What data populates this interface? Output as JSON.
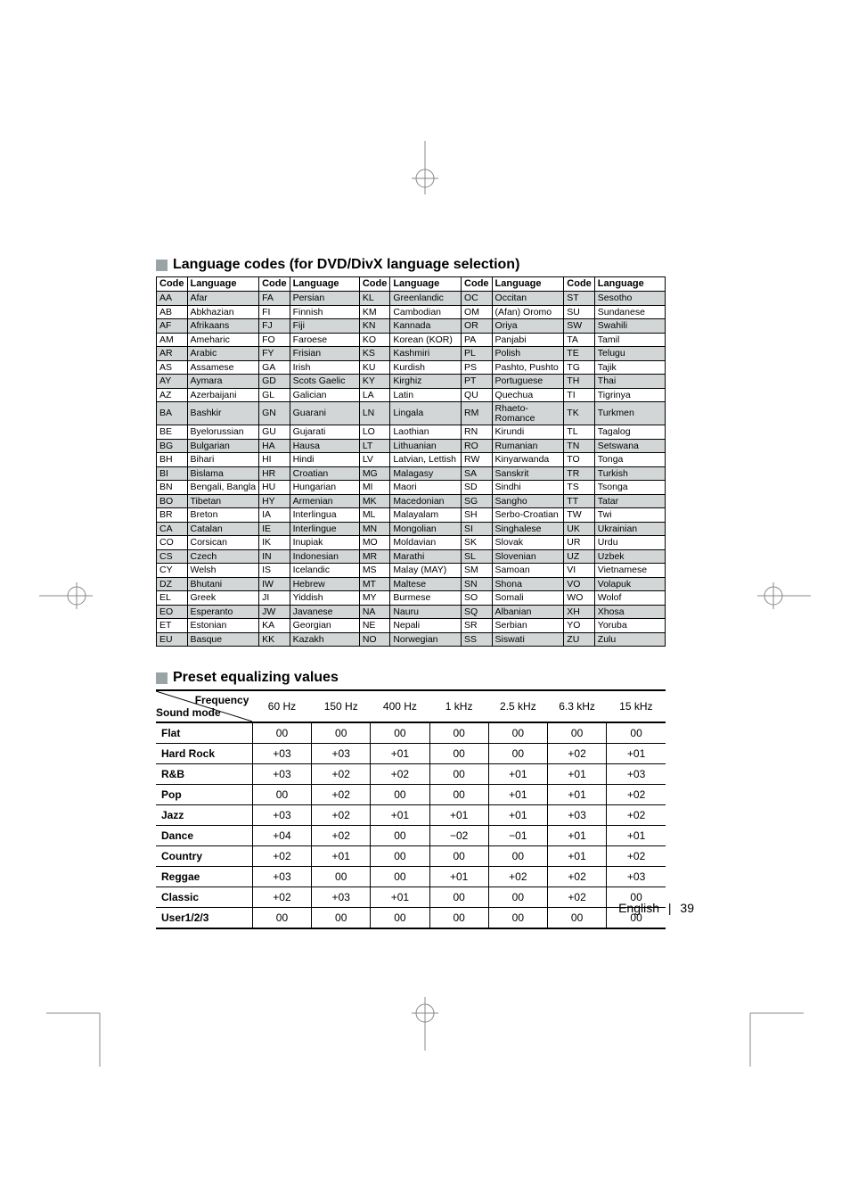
{
  "sections": {
    "lang_title": "Language codes (for DVD/DivX language selection)",
    "eq_title": "Preset equalizing values"
  },
  "lang_table": {
    "headers": [
      "Code",
      "Language"
    ],
    "columns": 5,
    "rows": [
      [
        [
          "AA",
          "Afar"
        ],
        [
          "FA",
          "Persian"
        ],
        [
          "KL",
          "Greenlandic"
        ],
        [
          "OC",
          "Occitan"
        ],
        [
          "ST",
          "Sesotho"
        ]
      ],
      [
        [
          "AB",
          "Abkhazian"
        ],
        [
          "FI",
          "Finnish"
        ],
        [
          "KM",
          "Cambodian"
        ],
        [
          "OM",
          "(Afan) Oromo"
        ],
        [
          "SU",
          "Sundanese"
        ]
      ],
      [
        [
          "AF",
          "Afrikaans"
        ],
        [
          "FJ",
          "Fiji"
        ],
        [
          "KN",
          "Kannada"
        ],
        [
          "OR",
          "Oriya"
        ],
        [
          "SW",
          "Swahili"
        ]
      ],
      [
        [
          "AM",
          "Ameharic"
        ],
        [
          "FO",
          "Faroese"
        ],
        [
          "KO",
          "Korean (KOR)"
        ],
        [
          "PA",
          "Panjabi"
        ],
        [
          "TA",
          "Tamil"
        ]
      ],
      [
        [
          "AR",
          "Arabic"
        ],
        [
          "FY",
          "Frisian"
        ],
        [
          "KS",
          "Kashmiri"
        ],
        [
          "PL",
          "Polish"
        ],
        [
          "TE",
          "Telugu"
        ]
      ],
      [
        [
          "AS",
          "Assamese"
        ],
        [
          "GA",
          "Irish"
        ],
        [
          "KU",
          "Kurdish"
        ],
        [
          "PS",
          "Pashto, Pushto"
        ],
        [
          "TG",
          "Tajik"
        ]
      ],
      [
        [
          "AY",
          "Aymara"
        ],
        [
          "GD",
          "Scots Gaelic"
        ],
        [
          "KY",
          "Kirghiz"
        ],
        [
          "PT",
          "Portuguese"
        ],
        [
          "TH",
          "Thai"
        ]
      ],
      [
        [
          "AZ",
          "Azerbaijani"
        ],
        [
          "GL",
          "Galician"
        ],
        [
          "LA",
          "Latin"
        ],
        [
          "QU",
          "Quechua"
        ],
        [
          "TI",
          "Tigrinya"
        ]
      ],
      [
        [
          "BA",
          "Bashkir"
        ],
        [
          "GN",
          "Guarani"
        ],
        [
          "LN",
          "Lingala"
        ],
        [
          "RM",
          "Rhaeto-Romance"
        ],
        [
          "TK",
          "Turkmen"
        ]
      ],
      [
        [
          "BE",
          "Byelorussian"
        ],
        [
          "GU",
          "Gujarati"
        ],
        [
          "LO",
          "Laothian"
        ],
        [
          "RN",
          "Kirundi"
        ],
        [
          "TL",
          "Tagalog"
        ]
      ],
      [
        [
          "BG",
          "Bulgarian"
        ],
        [
          "HA",
          "Hausa"
        ],
        [
          "LT",
          "Lithuanian"
        ],
        [
          "RO",
          "Rumanian"
        ],
        [
          "TN",
          "Setswana"
        ]
      ],
      [
        [
          "BH",
          "Bihari"
        ],
        [
          "HI",
          "Hindi"
        ],
        [
          "LV",
          "Latvian, Lettish"
        ],
        [
          "RW",
          "Kinyarwanda"
        ],
        [
          "TO",
          "Tonga"
        ]
      ],
      [
        [
          "BI",
          "Bislama"
        ],
        [
          "HR",
          "Croatian"
        ],
        [
          "MG",
          "Malagasy"
        ],
        [
          "SA",
          "Sanskrit"
        ],
        [
          "TR",
          "Turkish"
        ]
      ],
      [
        [
          "BN",
          "Bengali, Bangla"
        ],
        [
          "HU",
          "Hungarian"
        ],
        [
          "MI",
          "Maori"
        ],
        [
          "SD",
          "Sindhi"
        ],
        [
          "TS",
          "Tsonga"
        ]
      ],
      [
        [
          "BO",
          "Tibetan"
        ],
        [
          "HY",
          "Armenian"
        ],
        [
          "MK",
          "Macedonian"
        ],
        [
          "SG",
          "Sangho"
        ],
        [
          "TT",
          "Tatar"
        ]
      ],
      [
        [
          "BR",
          "Breton"
        ],
        [
          "IA",
          "Interlingua"
        ],
        [
          "ML",
          "Malayalam"
        ],
        [
          "SH",
          "Serbo-Croatian"
        ],
        [
          "TW",
          "Twi"
        ]
      ],
      [
        [
          "CA",
          "Catalan"
        ],
        [
          "IE",
          "Interlingue"
        ],
        [
          "MN",
          "Mongolian"
        ],
        [
          "SI",
          "Singhalese"
        ],
        [
          "UK",
          "Ukrainian"
        ]
      ],
      [
        [
          "CO",
          "Corsican"
        ],
        [
          "IK",
          "Inupiak"
        ],
        [
          "MO",
          "Moldavian"
        ],
        [
          "SK",
          "Slovak"
        ],
        [
          "UR",
          "Urdu"
        ]
      ],
      [
        [
          "CS",
          "Czech"
        ],
        [
          "IN",
          "Indonesian"
        ],
        [
          "MR",
          "Marathi"
        ],
        [
          "SL",
          "Slovenian"
        ],
        [
          "UZ",
          "Uzbek"
        ]
      ],
      [
        [
          "CY",
          "Welsh"
        ],
        [
          "IS",
          "Icelandic"
        ],
        [
          "MS",
          "Malay (MAY)"
        ],
        [
          "SM",
          "Samoan"
        ],
        [
          "VI",
          "Vietnamese"
        ]
      ],
      [
        [
          "DZ",
          "Bhutani"
        ],
        [
          "IW",
          "Hebrew"
        ],
        [
          "MT",
          "Maltese"
        ],
        [
          "SN",
          "Shona"
        ],
        [
          "VO",
          "Volapuk"
        ]
      ],
      [
        [
          "EL",
          "Greek"
        ],
        [
          "JI",
          "Yiddish"
        ],
        [
          "MY",
          "Burmese"
        ],
        [
          "SO",
          "Somali"
        ],
        [
          "WO",
          "Wolof"
        ]
      ],
      [
        [
          "EO",
          "Esperanto"
        ],
        [
          "JW",
          "Javanese"
        ],
        [
          "NA",
          "Nauru"
        ],
        [
          "SQ",
          "Albanian"
        ],
        [
          "XH",
          "Xhosa"
        ]
      ],
      [
        [
          "ET",
          "Estonian"
        ],
        [
          "KA",
          "Georgian"
        ],
        [
          "NE",
          "Nepali"
        ],
        [
          "SR",
          "Serbian"
        ],
        [
          "YO",
          "Yoruba"
        ]
      ],
      [
        [
          "EU",
          "Basque"
        ],
        [
          "KK",
          "Kazakh"
        ],
        [
          "NO",
          "Norwegian"
        ],
        [
          "SS",
          "Siswati"
        ],
        [
          "ZU",
          "Zulu"
        ]
      ]
    ],
    "shaded_row_color": "#d2d6d7",
    "border_color": "#000000",
    "font_size_pt": 8
  },
  "eq_table": {
    "corner_labels": {
      "top_right": "Frequency",
      "bottom_left": "Sound mode"
    },
    "freq_headers": [
      "60 Hz",
      "150 Hz",
      "400 Hz",
      "1 kHz",
      "2.5 kHz",
      "6.3 kHz",
      "15 kHz"
    ],
    "rows": [
      {
        "mode": "Flat",
        "vals": [
          "00",
          "00",
          "00",
          "00",
          "00",
          "00",
          "00"
        ]
      },
      {
        "mode": "Hard Rock",
        "vals": [
          "+03",
          "+03",
          "+01",
          "00",
          "00",
          "+02",
          "+01"
        ]
      },
      {
        "mode": "R&B",
        "vals": [
          "+03",
          "+02",
          "+02",
          "00",
          "+01",
          "+01",
          "+03"
        ]
      },
      {
        "mode": "Pop",
        "vals": [
          "00",
          "+02",
          "00",
          "00",
          "+01",
          "+01",
          "+02"
        ]
      },
      {
        "mode": "Jazz",
        "vals": [
          "+03",
          "+02",
          "+01",
          "+01",
          "+01",
          "+03",
          "+02"
        ]
      },
      {
        "mode": "Dance",
        "vals": [
          "+04",
          "+02",
          "00",
          "−02",
          "−01",
          "+01",
          "+01"
        ]
      },
      {
        "mode": "Country",
        "vals": [
          "+02",
          "+01",
          "00",
          "00",
          "00",
          "+01",
          "+02"
        ]
      },
      {
        "mode": "Reggae",
        "vals": [
          "+03",
          "00",
          "00",
          "+01",
          "+02",
          "+02",
          "+03"
        ]
      },
      {
        "mode": "Classic",
        "vals": [
          "+02",
          "+03",
          "+01",
          "00",
          "00",
          "+02",
          "00"
        ]
      },
      {
        "mode": "User1/2/3",
        "vals": [
          "00",
          "00",
          "00",
          "00",
          "00",
          "00",
          "00"
        ]
      }
    ],
    "border_color": "#000000",
    "font_size_pt": 9
  },
  "footer": {
    "lang": "English",
    "page": "39"
  },
  "colors": {
    "square_bullet": "#9aa3a6",
    "crop_mark": "#888888",
    "background": "#ffffff",
    "text": "#000000"
  }
}
